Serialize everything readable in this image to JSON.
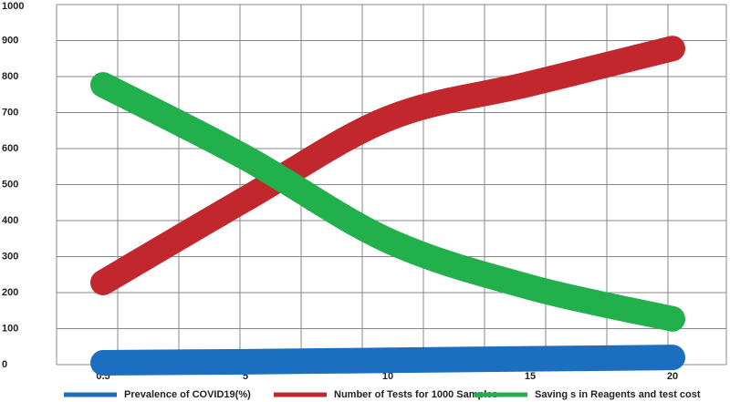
{
  "chart_data": {
    "type": "line",
    "categories": [
      "0.5",
      "5",
      "10",
      "15",
      "20"
    ],
    "series": [
      {
        "name": "Prevalence of COVID19(%)",
        "color": "#1c6fc0",
        "values": [
          5,
          8,
          12,
          16,
          20
        ]
      },
      {
        "name": "Number of Tests for 1000 Samples",
        "color": "#c1272d",
        "values": [
          228,
          460,
          683,
          780,
          878
        ]
      },
      {
        "name": "Saving s in Reagents and test cost",
        "color": "#21b04b",
        "values": [
          777,
          575,
          345,
          215,
          127
        ]
      }
    ],
    "ylim": [
      0,
      1000
    ],
    "yticks": [
      0,
      100,
      200,
      300,
      400,
      500,
      600,
      700,
      800,
      900,
      1000
    ],
    "grid": true,
    "legend": "bottom"
  }
}
